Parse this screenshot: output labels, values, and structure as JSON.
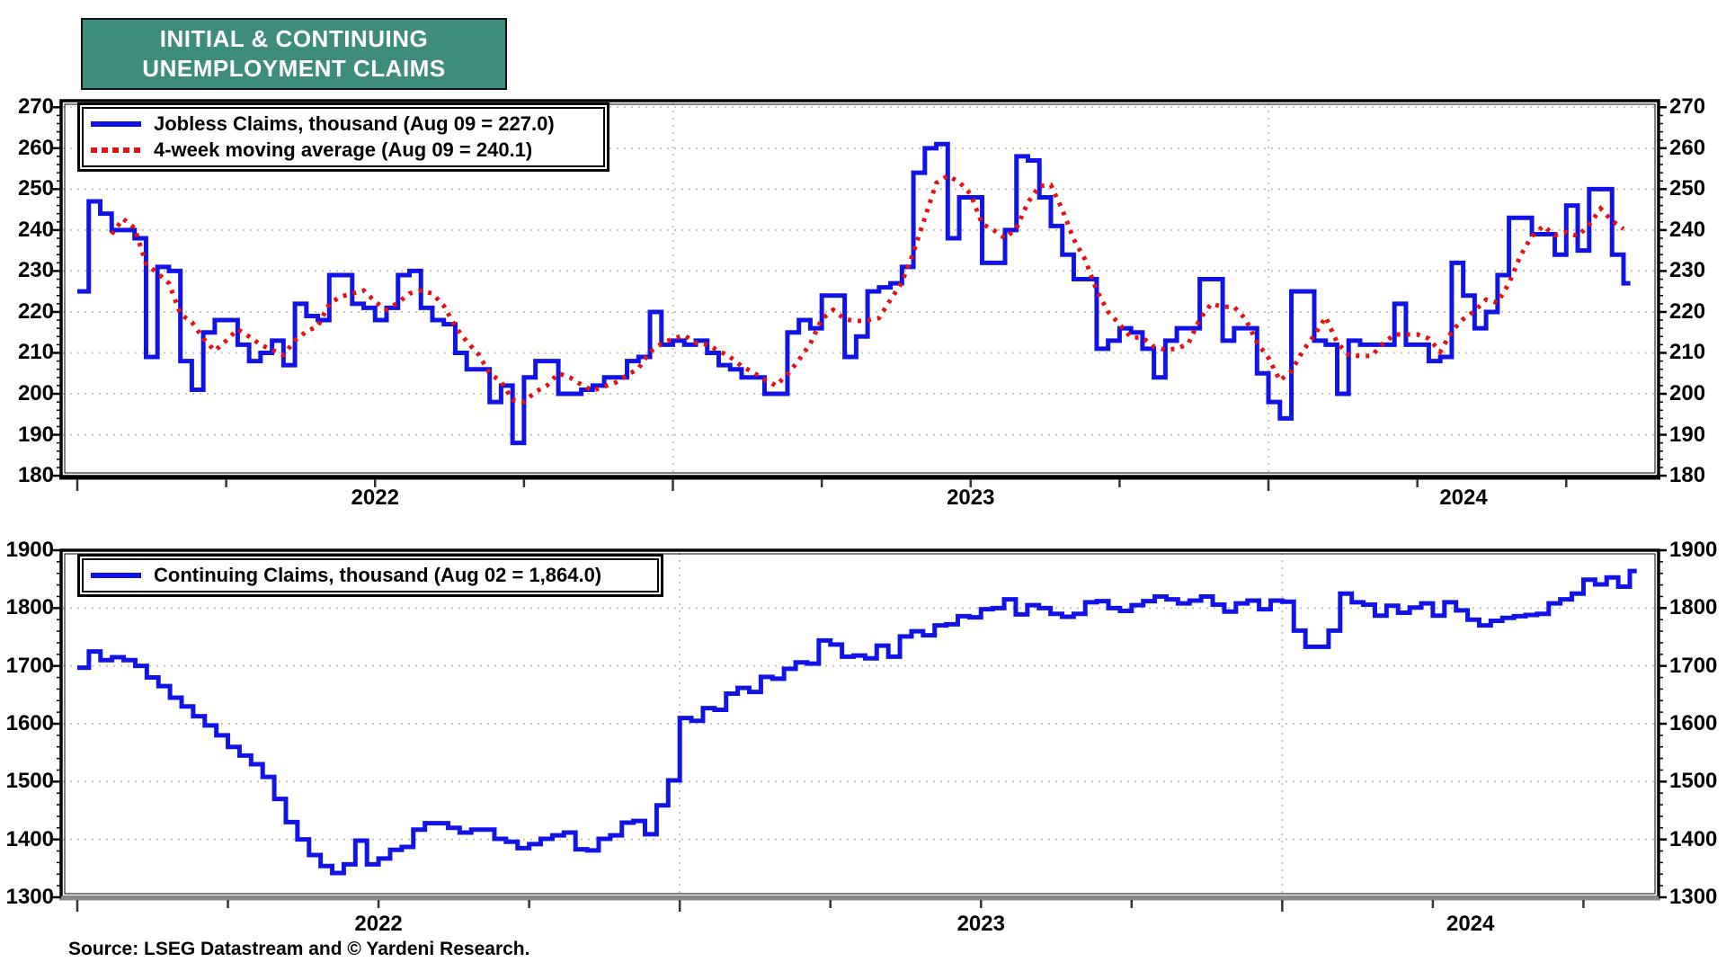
{
  "title": {
    "line1": "INITIAL & CONTINUING",
    "line2": "UNEMPLOYMENT CLAIMS"
  },
  "source_note": "Source: LSEG Datastream and © Yardeni Research.",
  "colors": {
    "title_box_teal": "#3E8C7C",
    "series_blue": "#1213E6",
    "series_red": "#E81111",
    "grid_gray": "#C4C4C4",
    "frame_black": "#000000",
    "bottom_axis_gray": "#8A8A8A"
  },
  "chart_data": [
    {
      "type": "line",
      "panel": "top",
      "frequency": "weekly",
      "x_range": "Jan 2022 - Aug 9 2024",
      "x_year_labels": [
        "2022",
        "2023",
        "2024"
      ],
      "ylim": [
        180,
        270
      ],
      "y_ticks": [
        180,
        190,
        200,
        210,
        220,
        230,
        240,
        250,
        260,
        270
      ],
      "grid": "dotted horizontal every 10, dotted vertical at year starts, legend top-left",
      "legend": [
        {
          "label": "Jobless Claims, thousand (Aug 09 = 227.0)",
          "style": "solid",
          "color": "#1213E6"
        },
        {
          "label": "4-week moving average (Aug 09 = 240.1)",
          "style": "dotted",
          "color": "#E81111"
        }
      ],
      "series": [
        {
          "name": "Jobless Claims, thousand",
          "last_point": "Aug 09 = 227.0",
          "render": "step",
          "values": [
            225,
            247,
            244,
            240,
            240,
            238,
            209,
            231,
            230,
            208,
            201,
            215,
            218,
            218,
            212,
            208,
            210,
            213,
            207,
            222,
            219,
            218,
            229,
            229,
            222,
            221,
            218,
            221,
            229,
            230,
            221,
            218,
            217,
            210,
            206,
            206,
            198,
            202,
            188,
            204,
            208,
            208,
            200,
            200,
            201,
            202,
            204,
            204,
            208,
            209,
            220,
            212,
            213,
            212,
            213,
            210,
            207,
            206,
            204,
            204,
            200,
            200,
            215,
            218,
            216,
            224,
            224,
            209,
            214,
            225,
            226,
            227,
            231,
            254,
            260,
            261,
            238,
            248,
            248,
            232,
            232,
            240,
            258,
            257,
            248,
            241,
            234,
            228,
            228,
            211,
            213,
            216,
            215,
            211,
            204,
            213,
            216,
            216,
            228,
            228,
            213,
            216,
            216,
            205,
            198,
            194,
            225,
            225,
            213,
            212,
            200,
            213,
            212,
            212,
            212,
            222,
            212,
            212,
            208,
            209,
            232,
            224,
            216,
            220,
            229,
            243,
            243,
            239,
            239,
            234,
            246,
            235,
            250,
            250,
            234,
            227
          ]
        },
        {
          "name": "4-week moving average",
          "last_point": "Aug 09 = 240.1",
          "render": "line-dotted",
          "derived_from": "4-week trailing mean of the Jobless Claims values"
        }
      ]
    },
    {
      "type": "line",
      "panel": "bottom",
      "frequency": "weekly",
      "x_range": "Jan 2022 - Aug 2 2024",
      "x_year_labels": [
        "2022",
        "2023",
        "2024"
      ],
      "ylim": [
        1300,
        1900
      ],
      "y_ticks": [
        1300,
        1400,
        1500,
        1600,
        1700,
        1800,
        1900
      ],
      "grid": "dotted horizontal every 100, dotted vertical at year starts, legend top-left",
      "legend": [
        {
          "label": "Continuing Claims, thousand (Aug 02 = 1,864.0)",
          "style": "solid",
          "color": "#1213E6"
        }
      ],
      "series": [
        {
          "name": "Continuing Claims, thousand",
          "last_point": "Aug 02 = 1,864.0",
          "render": "step",
          "values": [
            1697,
            1725,
            1710,
            1715,
            1710,
            1700,
            1680,
            1665,
            1645,
            1630,
            1613,
            1597,
            1580,
            1560,
            1545,
            1530,
            1508,
            1470,
            1430,
            1400,
            1373,
            1354,
            1342,
            1357,
            1398,
            1357,
            1367,
            1382,
            1387,
            1417,
            1428,
            1428,
            1420,
            1412,
            1417,
            1417,
            1401,
            1396,
            1385,
            1392,
            1401,
            1407,
            1412,
            1383,
            1381,
            1401,
            1407,
            1429,
            1432,
            1409,
            1459,
            1502,
            1610,
            1605,
            1627,
            1624,
            1652,
            1662,
            1655,
            1681,
            1678,
            1695,
            1706,
            1704,
            1744,
            1737,
            1716,
            1718,
            1713,
            1735,
            1716,
            1751,
            1760,
            1753,
            1770,
            1772,
            1786,
            1784,
            1798,
            1800,
            1815,
            1789,
            1805,
            1800,
            1790,
            1785,
            1790,
            1810,
            1812,
            1800,
            1795,
            1805,
            1812,
            1820,
            1815,
            1808,
            1813,
            1820,
            1806,
            1794,
            1808,
            1813,
            1798,
            1813,
            1811,
            1761,
            1733,
            1733,
            1761,
            1825,
            1810,
            1806,
            1787,
            1804,
            1792,
            1801,
            1808,
            1787,
            1810,
            1796,
            1780,
            1770,
            1778,
            1783,
            1786,
            1788,
            1790,
            1808,
            1815,
            1825,
            1849,
            1841,
            1853,
            1837,
            1864
          ]
        }
      ]
    }
  ]
}
